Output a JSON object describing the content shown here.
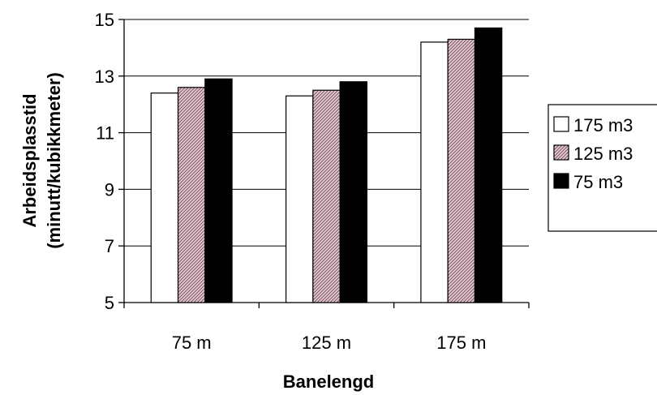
{
  "chart_data": {
    "type": "bar",
    "title": "",
    "xlabel": "Banelengd",
    "ylabel_line1": "Arbeidsplasstid",
    "ylabel_line2": "(minutt/kubikkmeter)",
    "categories": [
      "75 m",
      "125 m",
      "175 m"
    ],
    "ylim": [
      5,
      15
    ],
    "yticks": [
      5,
      7,
      9,
      11,
      13,
      15
    ],
    "grid": true,
    "legend_position": "right",
    "series": [
      {
        "name": "175 m3",
        "values": [
          12.4,
          12.3,
          14.2
        ],
        "fill": "white",
        "color": "#ffffff"
      },
      {
        "name": "125 m3",
        "values": [
          12.6,
          12.5,
          14.3
        ],
        "fill": "hatched",
        "color": "#d9b3bf"
      },
      {
        "name": "75 m3",
        "values": [
          12.9,
          12.8,
          14.7
        ],
        "fill": "solid",
        "color": "#000000"
      }
    ]
  }
}
